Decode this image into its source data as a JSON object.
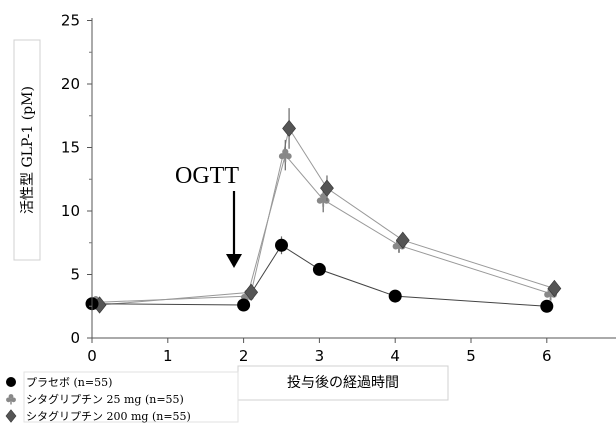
{
  "chart_data": {
    "type": "line",
    "xlabel": "投与後の経過時間",
    "ylabel": "活性型 GLP-1 (pM)",
    "xlim": [
      0,
      7
    ],
    "ylim": [
      0,
      25
    ],
    "xticks": [
      "0",
      "1",
      "2",
      "3",
      "4",
      "5",
      "6"
    ],
    "yticks": [
      "0",
      "5",
      "10",
      "15",
      "20",
      "25"
    ],
    "grid": false,
    "legend_position": "bottom-left",
    "annotation": {
      "text": "OGTT",
      "x": 1.95,
      "arrow_to_y": 4.5
    },
    "series": [
      {
        "name": "プラセボ (n=55)",
        "marker": "circle",
        "color": "#000000",
        "x": [
          0,
          2,
          2.5,
          3,
          4,
          6
        ],
        "y": [
          2.7,
          2.6,
          7.3,
          5.4,
          3.3,
          2.5
        ],
        "err": [
          0,
          0,
          0.7,
          0,
          0,
          0
        ]
      },
      {
        "name": "シタグリプチン 25 mg (n=55)",
        "marker": "club",
        "color": "#888888",
        "x": [
          0.05,
          2.05,
          2.55,
          3.05,
          4.05,
          6.05
        ],
        "y": [
          2.8,
          3.3,
          14.4,
          10.9,
          7.3,
          3.5
        ],
        "err": [
          0,
          0,
          1.2,
          1.0,
          0.6,
          0
        ]
      },
      {
        "name": "シタグリプチン 200 mg (n=55)",
        "marker": "diamond",
        "color": "#555555",
        "x": [
          0.1,
          2.1,
          2.6,
          3.1,
          4.1,
          6.1
        ],
        "y": [
          2.6,
          3.6,
          16.5,
          11.8,
          7.7,
          3.9
        ],
        "err": [
          0,
          0,
          1.6,
          1.0,
          0.5,
          0
        ]
      }
    ]
  }
}
